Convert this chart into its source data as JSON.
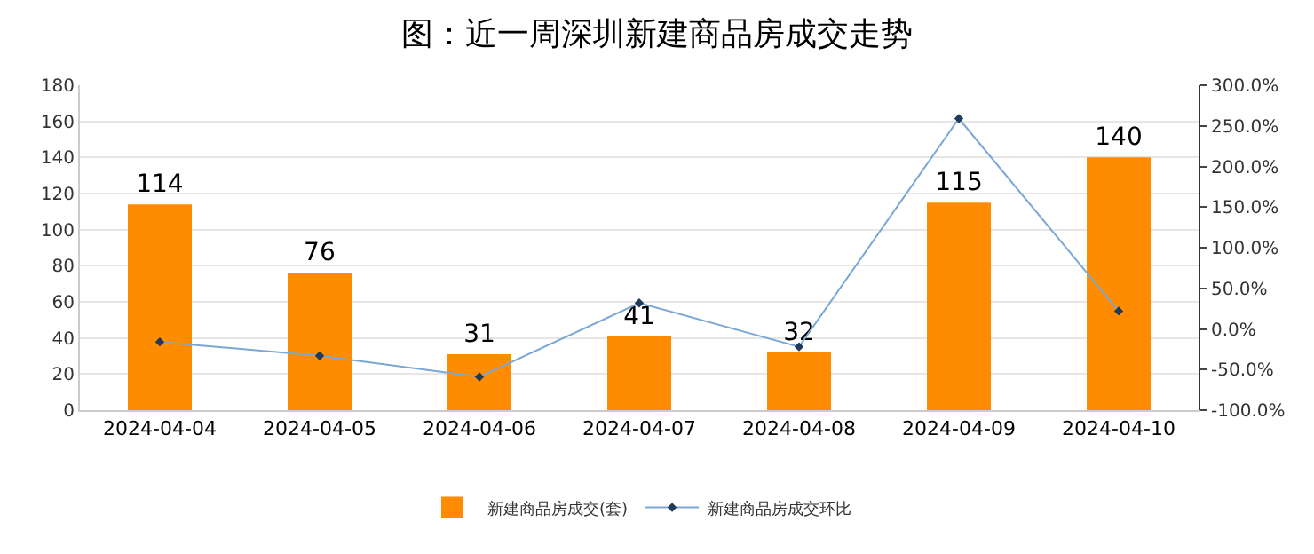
{
  "chart_data": {
    "type": "bar",
    "title": "图：近一周深圳新建商品房成交走势",
    "categories": [
      "2024-04-04",
      "2024-04-05",
      "2024-04-06",
      "2024-04-07",
      "2024-04-08",
      "2024-04-09",
      "2024-04-10"
    ],
    "series": [
      {
        "name": "新建商品房成交(套)",
        "color": "#ff8c00",
        "values": [
          114,
          76,
          31,
          41,
          32,
          115,
          140
        ],
        "data_labels": true
      },
      {
        "name": "新建商品房成交环比",
        "type": "line",
        "axis": "y2",
        "color": "#7ba7d6",
        "marker": "diamond",
        "values": [
          -16,
          -33,
          -59,
          32,
          -22,
          259,
          22
        ]
      }
    ],
    "ylim": [
      0,
      180
    ],
    "yticks": [
      0,
      20,
      40,
      60,
      80,
      100,
      120,
      140,
      160,
      180
    ],
    "y2lim": [
      -100,
      300
    ],
    "y2ticks": [
      {
        "value": -100,
        "label": "-100.0%"
      },
      {
        "value": -50,
        "label": "-50.0%"
      },
      {
        "value": 0,
        "label": "0.0%"
      },
      {
        "value": 50,
        "label": "50.0%"
      },
      {
        "value": 100,
        "label": "100.0%"
      },
      {
        "value": 150,
        "label": "150.0%"
      },
      {
        "value": 200,
        "label": "200.0%"
      },
      {
        "value": 250,
        "label": "250.0%"
      },
      {
        "value": 300,
        "label": "300.0%"
      }
    ],
    "grid": "y",
    "legend": "bottom"
  }
}
